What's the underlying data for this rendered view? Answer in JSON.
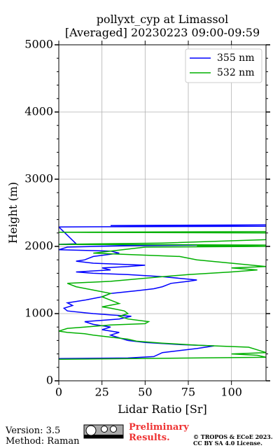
{
  "chart_data": {
    "type": "line",
    "title": "pollyxt_cyp at Limassol",
    "subtitle": "[Averaged] 20230223 09:00-09:59",
    "x_label": "Lidar Ratio [Sr]",
    "y_label": "Height (m)",
    "xlim": [
      0,
      120
    ],
    "xticks": [
      0,
      25,
      50,
      75,
      100
    ],
    "ylim": [
      0,
      5000
    ],
    "yticks": [
      0,
      1000,
      2000,
      3000,
      4000,
      5000
    ],
    "yminorticks": [
      200,
      400,
      600,
      800,
      1200,
      1400,
      1600,
      1800,
      2200,
      2400,
      2600,
      2800,
      3200,
      3400,
      3600,
      3800,
      4200,
      4400,
      4600,
      4800
    ],
    "grid": true,
    "legend": "upper right",
    "series": [
      {
        "name": "355 nm",
        "color": "#0000ff",
        "heights": [
          330,
          340,
          360,
          420,
          450,
          480,
          520,
          540,
          570,
          600,
          640,
          680,
          720,
          760,
          800,
          840,
          880,
          900,
          920,
          960,
          980,
          1000,
          1040,
          1080,
          1120,
          1160,
          1200,
          1250,
          1300,
          1340,
          1370,
          1400,
          1450,
          1480,
          1500,
          1550,
          1580,
          1600,
          1620,
          1650,
          1680,
          1700,
          1720,
          1750,
          1780,
          1800,
          1850,
          1900,
          1930,
          1950,
          1990,
          2010,
          2020,
          2030,
          2040,
          2290,
          2300,
          2310,
          2320
        ],
        "values": [
          0,
          40,
          55,
          60,
          70,
          80,
          90,
          70,
          50,
          40,
          35,
          30,
          35,
          25,
          30,
          20,
          15,
          25,
          35,
          42,
          30,
          20,
          5,
          3,
          8,
          5,
          15,
          25,
          30,
          45,
          55,
          60,
          65,
          75,
          80,
          60,
          40,
          20,
          10,
          30,
          25,
          40,
          50,
          20,
          10,
          15,
          20,
          35,
          30,
          0,
          5,
          40,
          80,
          0,
          10,
          0,
          120,
          30,
          120
        ]
      },
      {
        "name": "532 nm",
        "color": "#00b000",
        "heights": [
          320,
          350,
          380,
          400,
          420,
          460,
          500,
          530,
          560,
          590,
          620,
          650,
          680,
          700,
          720,
          740,
          780,
          800,
          830,
          850,
          880,
          920,
          960,
          1000,
          1040,
          1080,
          1100,
          1150,
          1200,
          1250,
          1300,
          1350,
          1400,
          1450,
          1480,
          1550,
          1580,
          1620,
          1650,
          1680,
          1700,
          1800,
          1850,
          1900,
          1990,
          2000,
          2010,
          2020,
          2030,
          2050,
          2100,
          2200,
          2210,
          2220
        ],
        "values": [
          0,
          120,
          115,
          100,
          120,
          115,
          110,
          80,
          60,
          45,
          40,
          30,
          20,
          15,
          5,
          0,
          5,
          15,
          30,
          50,
          52,
          40,
          35,
          40,
          38,
          30,
          25,
          35,
          30,
          25,
          30,
          20,
          10,
          5,
          30,
          60,
          75,
          100,
          115,
          100,
          120,
          80,
          70,
          20,
          50,
          120,
          80,
          120,
          0,
          60,
          120,
          120,
          0,
          120
        ]
      }
    ],
    "footer": {
      "version": "Version: 3.5",
      "method": "Method: Raman",
      "status": "Preliminary Results.",
      "copyright": "© TROPOS & ECoE 2023.",
      "license": "CC BY SA 4.0 License."
    }
  }
}
